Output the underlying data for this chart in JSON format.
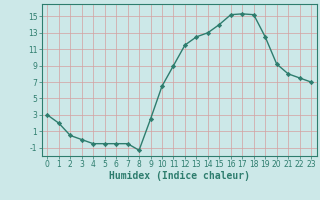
{
  "x": [
    0,
    1,
    2,
    3,
    4,
    5,
    6,
    7,
    8,
    9,
    10,
    11,
    12,
    13,
    14,
    15,
    16,
    17,
    18,
    19,
    20,
    21,
    22,
    23
  ],
  "y": [
    3,
    2,
    0.5,
    0,
    -0.5,
    -0.5,
    -0.5,
    -0.5,
    -1.3,
    2.5,
    6.5,
    9,
    11.5,
    12.5,
    13,
    14,
    15.2,
    15.3,
    15.2,
    12.5,
    9.2,
    8,
    7.5,
    7
  ],
  "line_color": "#2e7d6e",
  "marker": "D",
  "marker_size": 2.2,
  "bg_color": "#cce8e8",
  "grid_color": "#d4a0a0",
  "xlabel": "Humidex (Indice chaleur)",
  "xlim": [
    -0.5,
    23.5
  ],
  "ylim": [
    -2,
    16.5
  ],
  "yticks": [
    -1,
    1,
    3,
    5,
    7,
    9,
    11,
    13,
    15
  ],
  "xticks": [
    0,
    1,
    2,
    3,
    4,
    5,
    6,
    7,
    8,
    9,
    10,
    11,
    12,
    13,
    14,
    15,
    16,
    17,
    18,
    19,
    20,
    21,
    22,
    23
  ],
  "tick_label_fontsize": 5.5,
  "xlabel_fontsize": 7,
  "linewidth": 1.0
}
